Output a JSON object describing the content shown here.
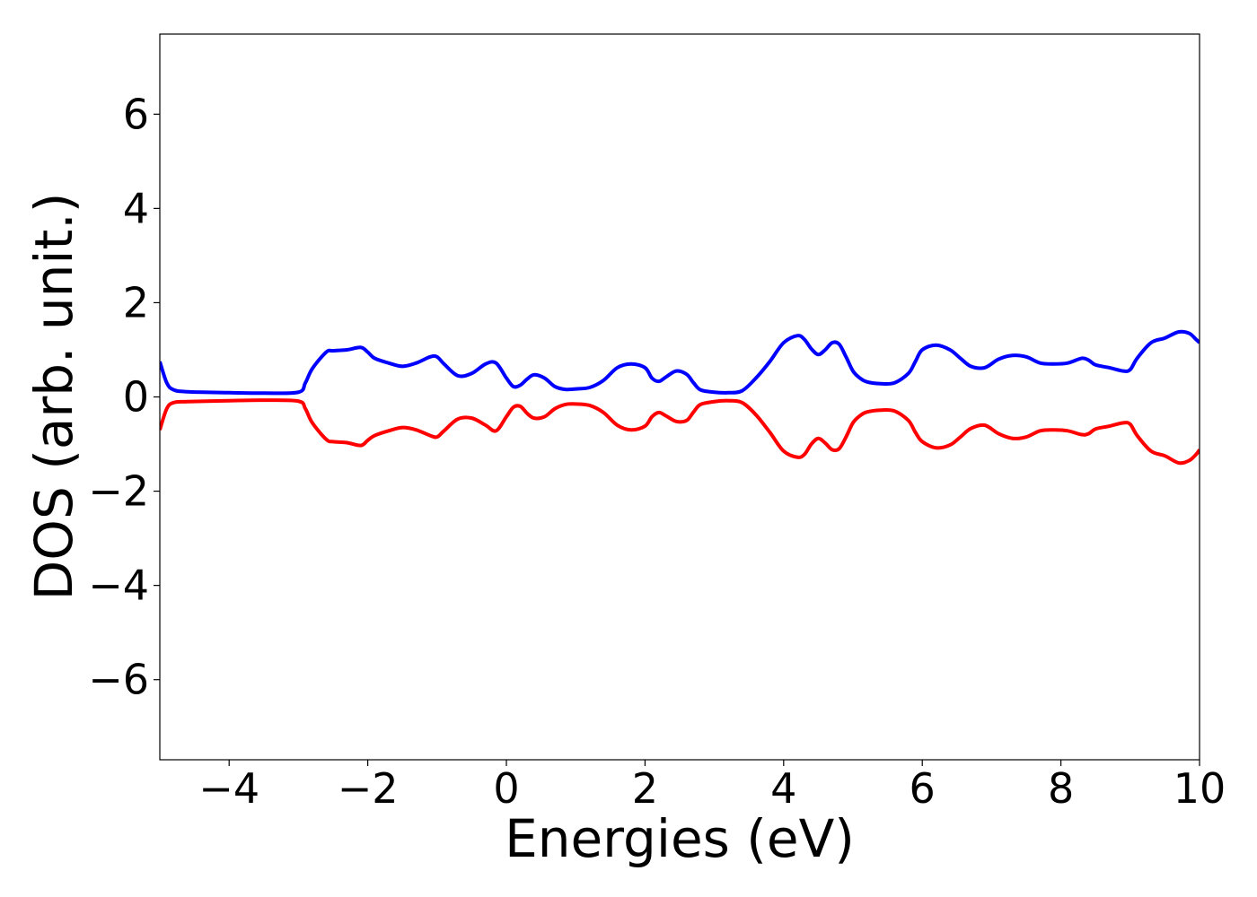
{
  "chart_data": {
    "type": "line",
    "title": "",
    "xlabel": "Energies (eV)",
    "ylabel": "DOS (arb. unit.)",
    "xlim": [
      -5,
      10
    ],
    "ylim": [
      -7.7,
      7.7
    ],
    "xticks": [
      -4,
      -2,
      0,
      2,
      4,
      6,
      8,
      10
    ],
    "yticks": [
      -6,
      -4,
      -2,
      0,
      2,
      4,
      6
    ],
    "xtick_labels": [
      "−4",
      "−2",
      "0",
      "2",
      "4",
      "6",
      "8",
      "10"
    ],
    "ytick_labels": [
      "−6",
      "−4",
      "−2",
      "0",
      "2",
      "4",
      "6"
    ],
    "grid": false,
    "series": [
      {
        "color": "#0000ff",
        "x": [
          -5.0,
          -4.9,
          -4.8,
          -4.6,
          -4.0,
          -3.5,
          -3.0,
          -2.9,
          -2.8,
          -2.6,
          -2.5,
          -2.3,
          -2.1,
          -2.0,
          -1.9,
          -1.7,
          -1.5,
          -1.3,
          -1.1,
          -1.0,
          -0.9,
          -0.7,
          -0.5,
          -0.3,
          -0.15,
          0.0,
          0.1,
          0.2,
          0.3,
          0.4,
          0.55,
          0.7,
          0.85,
          1.0,
          1.2,
          1.4,
          1.6,
          1.8,
          2.0,
          2.1,
          2.2,
          2.3,
          2.45,
          2.6,
          2.7,
          2.8,
          3.0,
          3.2,
          3.4,
          3.6,
          3.8,
          4.0,
          4.2,
          4.3,
          4.4,
          4.5,
          4.6,
          4.7,
          4.8,
          4.9,
          5.0,
          5.1,
          5.2,
          5.4,
          5.6,
          5.8,
          5.9,
          6.0,
          6.2,
          6.4,
          6.55,
          6.7,
          6.9,
          7.1,
          7.3,
          7.5,
          7.7,
          7.9,
          8.1,
          8.3,
          8.4,
          8.5,
          8.7,
          8.9,
          9.0,
          9.1,
          9.3,
          9.5,
          9.7,
          9.85,
          9.95,
          10.0
        ],
        "y": [
          0.75,
          0.3,
          0.15,
          0.11,
          0.09,
          0.08,
          0.1,
          0.3,
          0.6,
          0.95,
          0.98,
          1.0,
          1.05,
          0.95,
          0.82,
          0.72,
          0.65,
          0.72,
          0.85,
          0.85,
          0.7,
          0.45,
          0.5,
          0.7,
          0.72,
          0.4,
          0.22,
          0.25,
          0.38,
          0.47,
          0.4,
          0.22,
          0.16,
          0.17,
          0.2,
          0.35,
          0.62,
          0.7,
          0.62,
          0.4,
          0.33,
          0.42,
          0.55,
          0.48,
          0.3,
          0.15,
          0.1,
          0.09,
          0.13,
          0.4,
          0.75,
          1.15,
          1.3,
          1.22,
          1.02,
          0.9,
          1.0,
          1.15,
          1.12,
          0.85,
          0.55,
          0.4,
          0.32,
          0.28,
          0.3,
          0.5,
          0.75,
          1.0,
          1.1,
          1.0,
          0.82,
          0.65,
          0.62,
          0.8,
          0.88,
          0.85,
          0.72,
          0.7,
          0.72,
          0.82,
          0.78,
          0.68,
          0.62,
          0.55,
          0.58,
          0.82,
          1.15,
          1.25,
          1.38,
          1.35,
          1.22,
          1.15
        ]
      },
      {
        "color": "#ff0000",
        "x": [
          -5.0,
          -4.9,
          -4.8,
          -4.6,
          -4.0,
          -3.5,
          -3.0,
          -2.9,
          -2.8,
          -2.6,
          -2.5,
          -2.3,
          -2.1,
          -2.0,
          -1.9,
          -1.7,
          -1.5,
          -1.3,
          -1.1,
          -1.0,
          -0.9,
          -0.7,
          -0.5,
          -0.3,
          -0.15,
          0.0,
          0.1,
          0.2,
          0.3,
          0.4,
          0.55,
          0.7,
          0.85,
          1.0,
          1.2,
          1.4,
          1.6,
          1.8,
          2.0,
          2.1,
          2.2,
          2.3,
          2.45,
          2.6,
          2.7,
          2.8,
          3.0,
          3.2,
          3.4,
          3.6,
          3.8,
          4.0,
          4.2,
          4.3,
          4.4,
          4.5,
          4.6,
          4.7,
          4.8,
          4.9,
          5.0,
          5.1,
          5.2,
          5.4,
          5.6,
          5.8,
          5.9,
          6.0,
          6.2,
          6.4,
          6.55,
          6.7,
          6.9,
          7.1,
          7.3,
          7.5,
          7.7,
          7.9,
          8.1,
          8.3,
          8.4,
          8.5,
          8.7,
          8.9,
          9.0,
          9.1,
          9.3,
          9.5,
          9.7,
          9.85,
          9.95,
          10.0
        ],
        "y": [
          -0.7,
          -0.25,
          -0.12,
          -0.1,
          -0.08,
          -0.07,
          -0.09,
          -0.25,
          -0.55,
          -0.9,
          -0.95,
          -0.97,
          -1.03,
          -0.92,
          -0.82,
          -0.72,
          -0.65,
          -0.7,
          -0.82,
          -0.85,
          -0.72,
          -0.47,
          -0.45,
          -0.6,
          -0.72,
          -0.42,
          -0.22,
          -0.2,
          -0.35,
          -0.45,
          -0.42,
          -0.25,
          -0.16,
          -0.15,
          -0.18,
          -0.33,
          -0.6,
          -0.7,
          -0.62,
          -0.42,
          -0.33,
          -0.4,
          -0.52,
          -0.5,
          -0.32,
          -0.16,
          -0.1,
          -0.08,
          -0.12,
          -0.38,
          -0.75,
          -1.15,
          -1.28,
          -1.22,
          -1.0,
          -0.88,
          -0.98,
          -1.12,
          -1.1,
          -0.85,
          -0.55,
          -0.4,
          -0.32,
          -0.28,
          -0.3,
          -0.5,
          -0.75,
          -0.95,
          -1.08,
          -1.02,
          -0.85,
          -0.67,
          -0.6,
          -0.78,
          -0.88,
          -0.85,
          -0.72,
          -0.7,
          -0.72,
          -0.8,
          -0.78,
          -0.68,
          -0.62,
          -0.55,
          -0.58,
          -0.82,
          -1.15,
          -1.25,
          -1.4,
          -1.35,
          -1.22,
          -1.12
        ]
      }
    ]
  }
}
